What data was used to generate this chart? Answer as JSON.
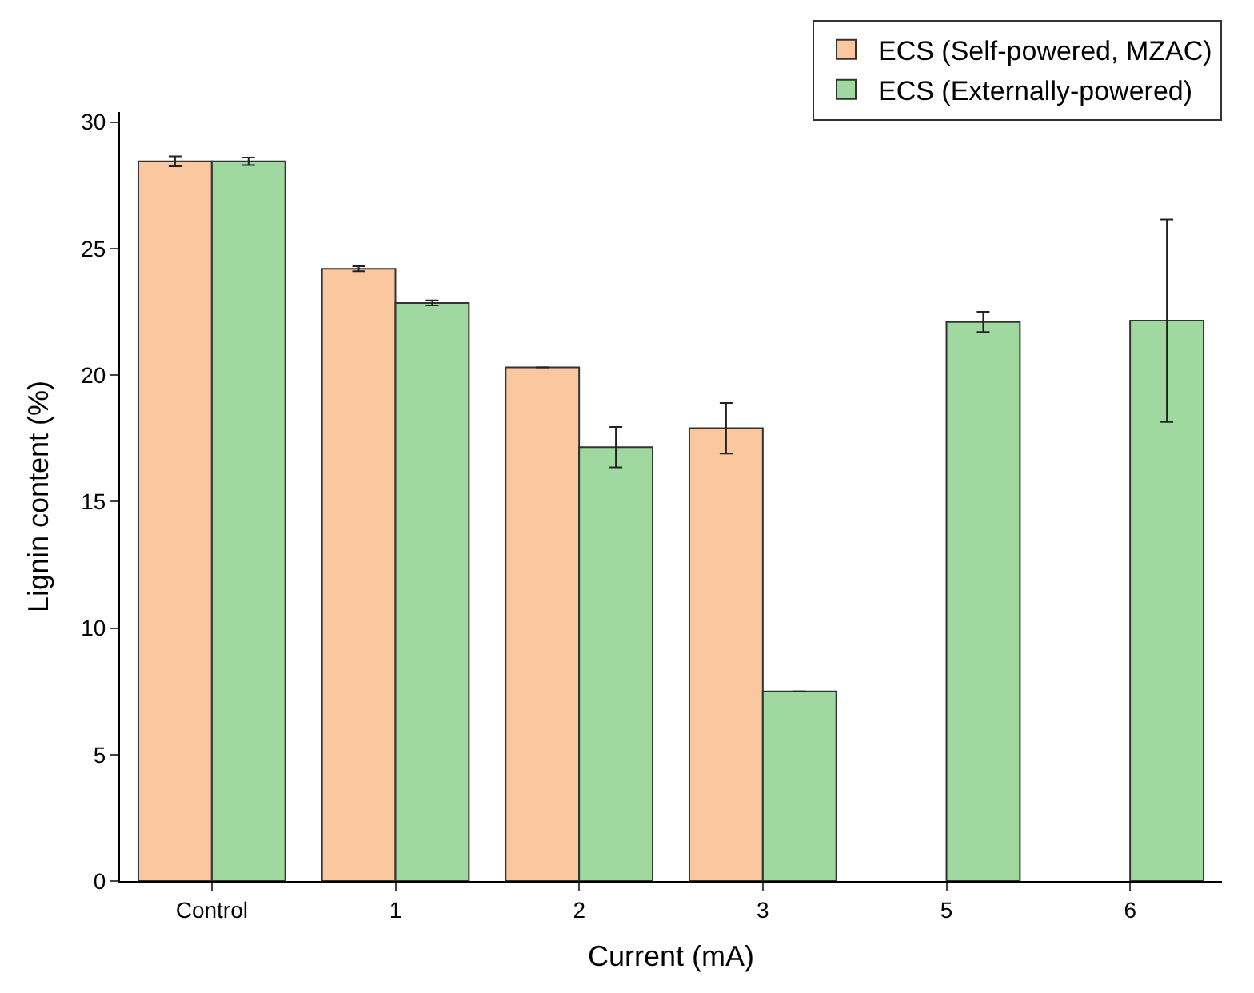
{
  "chart_data": {
    "type": "bar",
    "xlabel": "Current (mA)",
    "ylabel": "Lignin content (%)",
    "categories": [
      "Control",
      "1",
      "2",
      "3",
      "5",
      "6"
    ],
    "series": [
      {
        "name": "ECS (Self-powered, MZAC)",
        "color": "#fbc79e",
        "values": [
          28.45,
          24.2,
          20.3,
          17.9,
          null,
          null
        ],
        "errors": [
          0.2,
          0.1,
          null,
          1.0,
          null,
          null
        ]
      },
      {
        "name": "ECS (Externally-powered)",
        "color": "#a0d9a0",
        "values": [
          28.45,
          22.85,
          17.15,
          7.5,
          22.1,
          22.15
        ],
        "errors": [
          0.15,
          0.1,
          0.8,
          null,
          0.4,
          4.0
        ]
      }
    ],
    "ylim": [
      0,
      30.4
    ],
    "yticks": [
      0,
      5,
      10,
      15,
      20,
      25,
      30
    ],
    "legend": "top right"
  }
}
